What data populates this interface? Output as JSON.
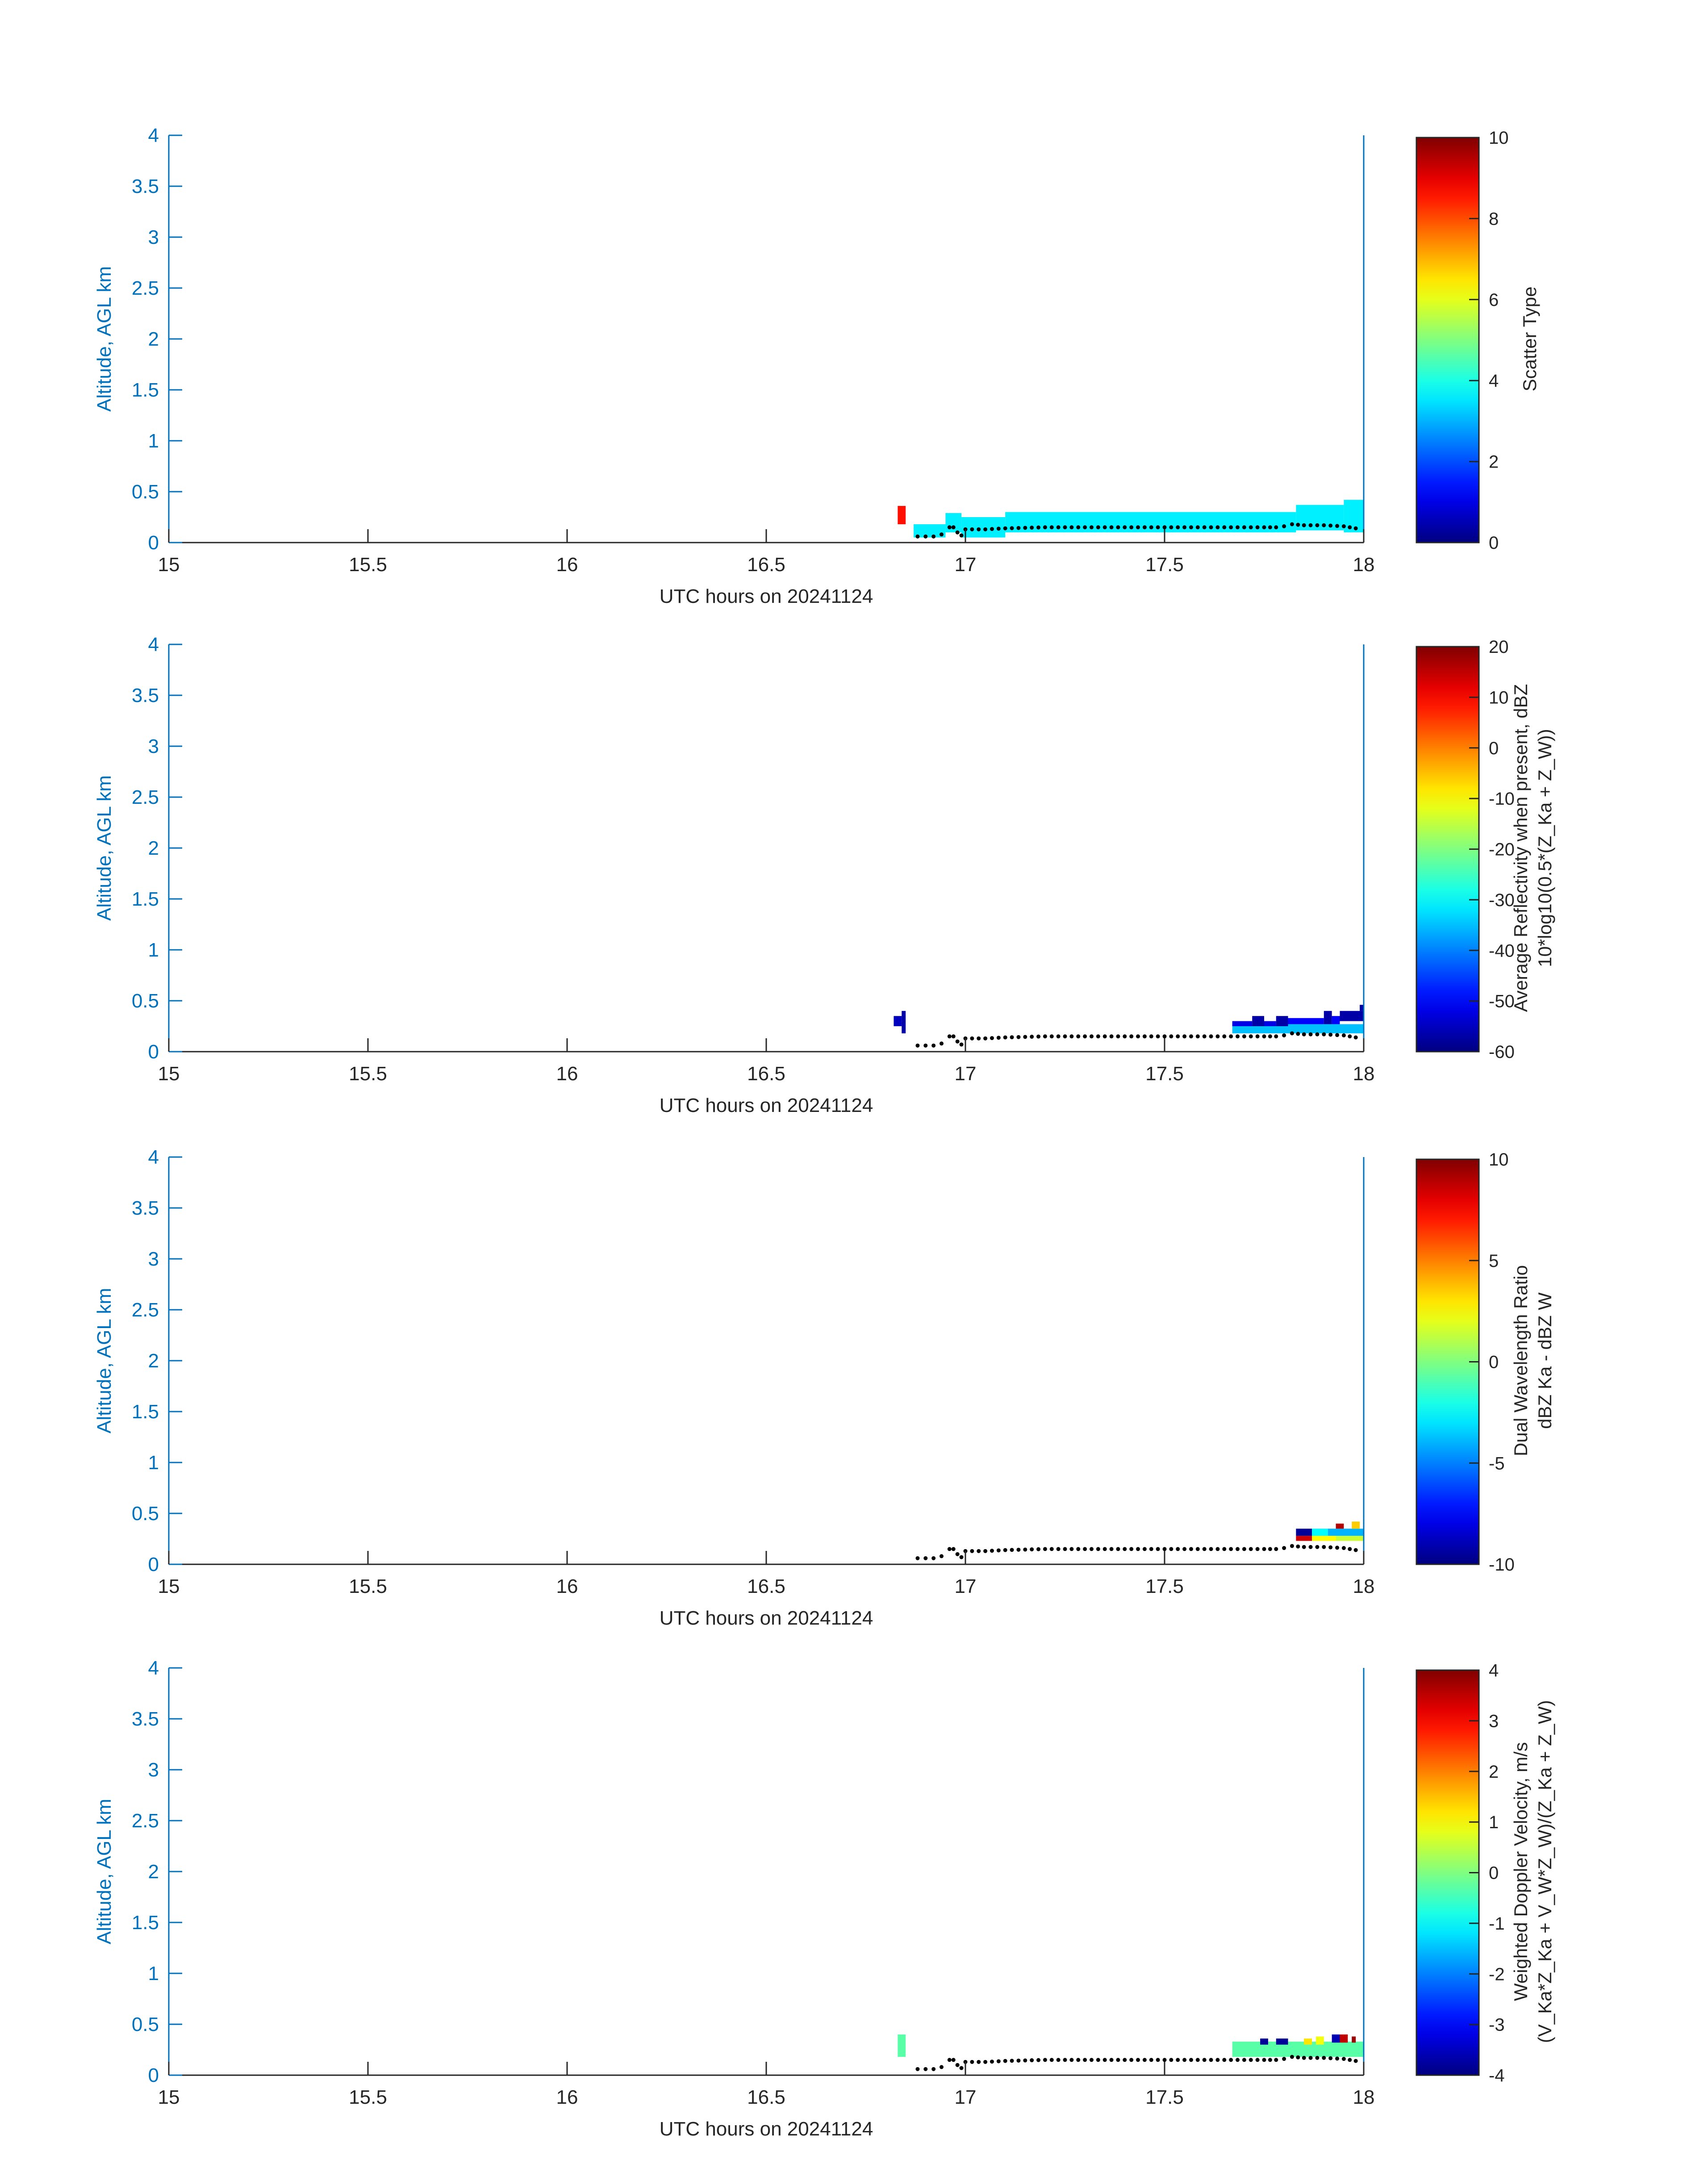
{
  "figure": {
    "shared": {
      "xlabel": "UTC hours on 20241124",
      "ylabel": "Altitude, AGL km",
      "xlim": [
        15,
        18
      ],
      "ylim": [
        0,
        4
      ],
      "xticks": [
        "15",
        "15.5",
        "16",
        "16.5",
        "17",
        "17.5",
        "18"
      ],
      "yticks": [
        "0",
        "0.5",
        "1",
        "1.5",
        "2",
        "2.5",
        "3",
        "3.5",
        "4"
      ],
      "axis_color": "#0072BD",
      "colormap": "jet",
      "grid": false
    }
  },
  "chart_data": [
    {
      "type": "heatmap",
      "panel": "scatter-type",
      "colorbar": {
        "label_lines": [
          "Scatter Type"
        ],
        "clim": [
          0,
          10
        ],
        "ticks": [
          "0",
          "2",
          "4",
          "6",
          "8",
          "10"
        ]
      },
      "cells": [
        {
          "x0": 16.83,
          "x1": 16.85,
          "y0": 0.18,
          "y1": 0.36,
          "v": 8.6
        },
        {
          "x0": 16.87,
          "x1": 16.95,
          "y0": 0.05,
          "y1": 0.18,
          "v": 3.6
        },
        {
          "x0": 16.95,
          "x1": 16.99,
          "y0": 0.1,
          "y1": 0.29,
          "v": 3.6
        },
        {
          "x0": 16.99,
          "x1": 17.1,
          "y0": 0.05,
          "y1": 0.25,
          "v": 3.6
        },
        {
          "x0": 17.1,
          "x1": 17.83,
          "y0": 0.1,
          "y1": 0.3,
          "v": 3.6
        },
        {
          "x0": 17.83,
          "x1": 17.95,
          "y0": 0.12,
          "y1": 0.37,
          "v": 3.6
        },
        {
          "x0": 17.95,
          "x1": 18.0,
          "y0": 0.1,
          "y1": 0.42,
          "v": 3.6
        }
      ]
    },
    {
      "type": "heatmap",
      "panel": "reflectivity",
      "colorbar": {
        "label_lines": [
          "Average Reflectivity when present, dBZ",
          "10*log10(0.5*(Z_Ka + Z_W))"
        ],
        "clim": [
          -60,
          20
        ],
        "ticks": [
          "-60",
          "-50",
          "-40",
          "-30",
          "-20",
          "-10",
          "0",
          "10",
          "20"
        ]
      },
      "cells": [
        {
          "x0": 16.82,
          "x1": 16.84,
          "y0": 0.25,
          "y1": 0.35,
          "v": -55
        },
        {
          "x0": 16.84,
          "x1": 16.85,
          "y0": 0.18,
          "y1": 0.4,
          "v": -57
        },
        {
          "x0": 17.67,
          "x1": 18.0,
          "y0": 0.18,
          "y1": 0.27,
          "v": -35
        },
        {
          "x0": 17.67,
          "x1": 17.72,
          "y0": 0.25,
          "y1": 0.3,
          "v": -52
        },
        {
          "x0": 17.72,
          "x1": 17.75,
          "y0": 0.25,
          "y1": 0.35,
          "v": -57
        },
        {
          "x0": 17.75,
          "x1": 17.78,
          "y0": 0.25,
          "y1": 0.3,
          "v": -52
        },
        {
          "x0": 17.78,
          "x1": 17.81,
          "y0": 0.25,
          "y1": 0.35,
          "v": -57
        },
        {
          "x0": 17.81,
          "x1": 17.9,
          "y0": 0.27,
          "y1": 0.33,
          "v": -50
        },
        {
          "x0": 17.9,
          "x1": 17.92,
          "y0": 0.27,
          "y1": 0.4,
          "v": -57
        },
        {
          "x0": 17.92,
          "x1": 17.94,
          "y0": 0.27,
          "y1": 0.35,
          "v": -50
        },
        {
          "x0": 17.94,
          "x1": 18.0,
          "y0": 0.3,
          "y1": 0.4,
          "v": -57
        },
        {
          "x0": 17.99,
          "x1": 18.0,
          "y0": 0.4,
          "y1": 0.46,
          "v": -57
        }
      ]
    },
    {
      "type": "heatmap",
      "panel": "dual-wavelength-ratio",
      "colorbar": {
        "label_lines": [
          "Dual Wavelength Ratio",
          "dBZ Ka - dBZ W"
        ],
        "clim": [
          -10,
          10
        ],
        "ticks": [
          "-10",
          "-5",
          "0",
          "5",
          "10"
        ]
      },
      "cells": [
        {
          "x0": 17.83,
          "x1": 17.87,
          "y0": 0.23,
          "y1": 0.28,
          "v": 8.5
        },
        {
          "x0": 17.87,
          "x1": 17.93,
          "y0": 0.23,
          "y1": 0.28,
          "v": 2.5
        },
        {
          "x0": 17.93,
          "x1": 18.0,
          "y0": 0.23,
          "y1": 0.28,
          "v": 1.5
        },
        {
          "x0": 17.83,
          "x1": 17.87,
          "y0": 0.28,
          "y1": 0.35,
          "v": -9.5
        },
        {
          "x0": 17.87,
          "x1": 17.91,
          "y0": 0.28,
          "y1": 0.35,
          "v": -2.5
        },
        {
          "x0": 17.91,
          "x1": 18.0,
          "y0": 0.28,
          "y1": 0.35,
          "v": -4.0
        },
        {
          "x0": 17.93,
          "x1": 17.95,
          "y0": 0.35,
          "y1": 0.4,
          "v": 9.0
        },
        {
          "x0": 17.97,
          "x1": 17.99,
          "y0": 0.35,
          "y1": 0.42,
          "v": 3.5
        }
      ]
    },
    {
      "type": "heatmap",
      "panel": "doppler-velocity",
      "colorbar": {
        "label_lines": [
          "Weighted Doppler Velocity, m/s",
          "(V_Ka*Z_Ka + V_W*Z_W)/(Z_Ka + Z_W)"
        ],
        "clim": [
          -4,
          4
        ],
        "ticks": [
          "-4",
          "-3",
          "-2",
          "-1",
          "0",
          "1",
          "2",
          "3",
          "4"
        ]
      },
      "cells": [
        {
          "x0": 16.83,
          "x1": 16.85,
          "y0": 0.18,
          "y1": 0.4,
          "v": -0.3
        },
        {
          "x0": 17.67,
          "x1": 18.0,
          "y0": 0.18,
          "y1": 0.33,
          "v": -0.3
        },
        {
          "x0": 17.74,
          "x1": 17.76,
          "y0": 0.3,
          "y1": 0.36,
          "v": -3.8
        },
        {
          "x0": 17.78,
          "x1": 17.81,
          "y0": 0.3,
          "y1": 0.36,
          "v": -3.8
        },
        {
          "x0": 17.85,
          "x1": 17.87,
          "y0": 0.3,
          "y1": 0.36,
          "v": 1.2
        },
        {
          "x0": 17.88,
          "x1": 17.9,
          "y0": 0.3,
          "y1": 0.38,
          "v": 0.9
        },
        {
          "x0": 17.92,
          "x1": 17.94,
          "y0": 0.32,
          "y1": 0.4,
          "v": -3.6
        },
        {
          "x0": 17.94,
          "x1": 17.96,
          "y0": 0.32,
          "y1": 0.4,
          "v": 3.5
        },
        {
          "x0": 17.97,
          "x1": 17.98,
          "y0": 0.32,
          "y1": 0.38,
          "v": 3.8
        }
      ]
    }
  ],
  "ground_trace": {
    "style": "dotted-black",
    "x": [
      16.88,
      16.9,
      16.92,
      16.94,
      16.96,
      16.97,
      16.98,
      16.99,
      17.0,
      17.05,
      17.1,
      17.2,
      17.3,
      17.4,
      17.5,
      17.6,
      17.7,
      17.75,
      17.78,
      17.8,
      17.82,
      17.85,
      17.9,
      17.95,
      17.98,
      18.0
    ],
    "y": [
      0.06,
      0.06,
      0.06,
      0.08,
      0.15,
      0.15,
      0.1,
      0.07,
      0.13,
      0.13,
      0.14,
      0.15,
      0.15,
      0.15,
      0.15,
      0.15,
      0.15,
      0.15,
      0.15,
      0.16,
      0.18,
      0.17,
      0.17,
      0.16,
      0.14,
      0.13
    ]
  }
}
